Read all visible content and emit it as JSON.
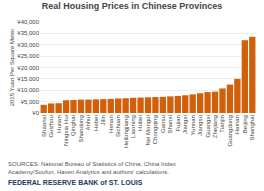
{
  "chart_data": {
    "type": "bar",
    "title": "Real Housing Prices in Chinese Provinces",
    "ylabel": "2015 Yuan Per Square Meter",
    "annotations": [
      "SOURCES: National Bureau of Statistics of China, China Index Academy/Soufun, Haven Analytics and authors' calculations.",
      "FEDERAL RESERVE BANK of ST. LOUIS"
    ],
    "categories": [
      "Shaanxi",
      "Guizhou",
      "Hunan",
      "Ningxia Hui",
      "Qinghai",
      "Shandong",
      "Anhui",
      "Hebei",
      "Jilin",
      "Henan",
      "Sichuan",
      "Heilongjiang",
      "Liaoning",
      "Hubei",
      "Nei Mongol",
      "Chongqing",
      "Gansu",
      "Shanxi",
      "Fujian",
      "Jiangxi",
      "Yunnan",
      "Jiangsu",
      "Guangxi",
      "Zhejiang",
      "Tianjin",
      "Guangdong",
      "Hainan",
      "Beijing",
      "Shanghai"
    ],
    "values": [
      3600,
      4200,
      4300,
      5600,
      5700,
      5900,
      5900,
      6000,
      6100,
      6200,
      6400,
      6500,
      6700,
      6800,
      6900,
      7000,
      7100,
      7300,
      7500,
      7800,
      8200,
      8700,
      9200,
      9400,
      10800,
      12500,
      15000,
      32000,
      33500
    ],
    "color": "#D2600A",
    "ylim": [
      0,
      40000
    ],
    "yticks": [
      {
        "value": 0,
        "label": "¥0"
      },
      {
        "value": 5000,
        "label": "¥5,000"
      },
      {
        "value": 10000,
        "label": "¥10,000"
      },
      {
        "value": 15000,
        "label": "¥15,000"
      },
      {
        "value": 20000,
        "label": "¥20,000"
      },
      {
        "value": 25000,
        "label": "¥25,000"
      },
      {
        "value": 30000,
        "label": "¥30,000"
      },
      {
        "value": 35000,
        "label": "¥35,000"
      },
      {
        "value": 40000,
        "label": "¥40,000"
      }
    ],
    "grid": true
  }
}
